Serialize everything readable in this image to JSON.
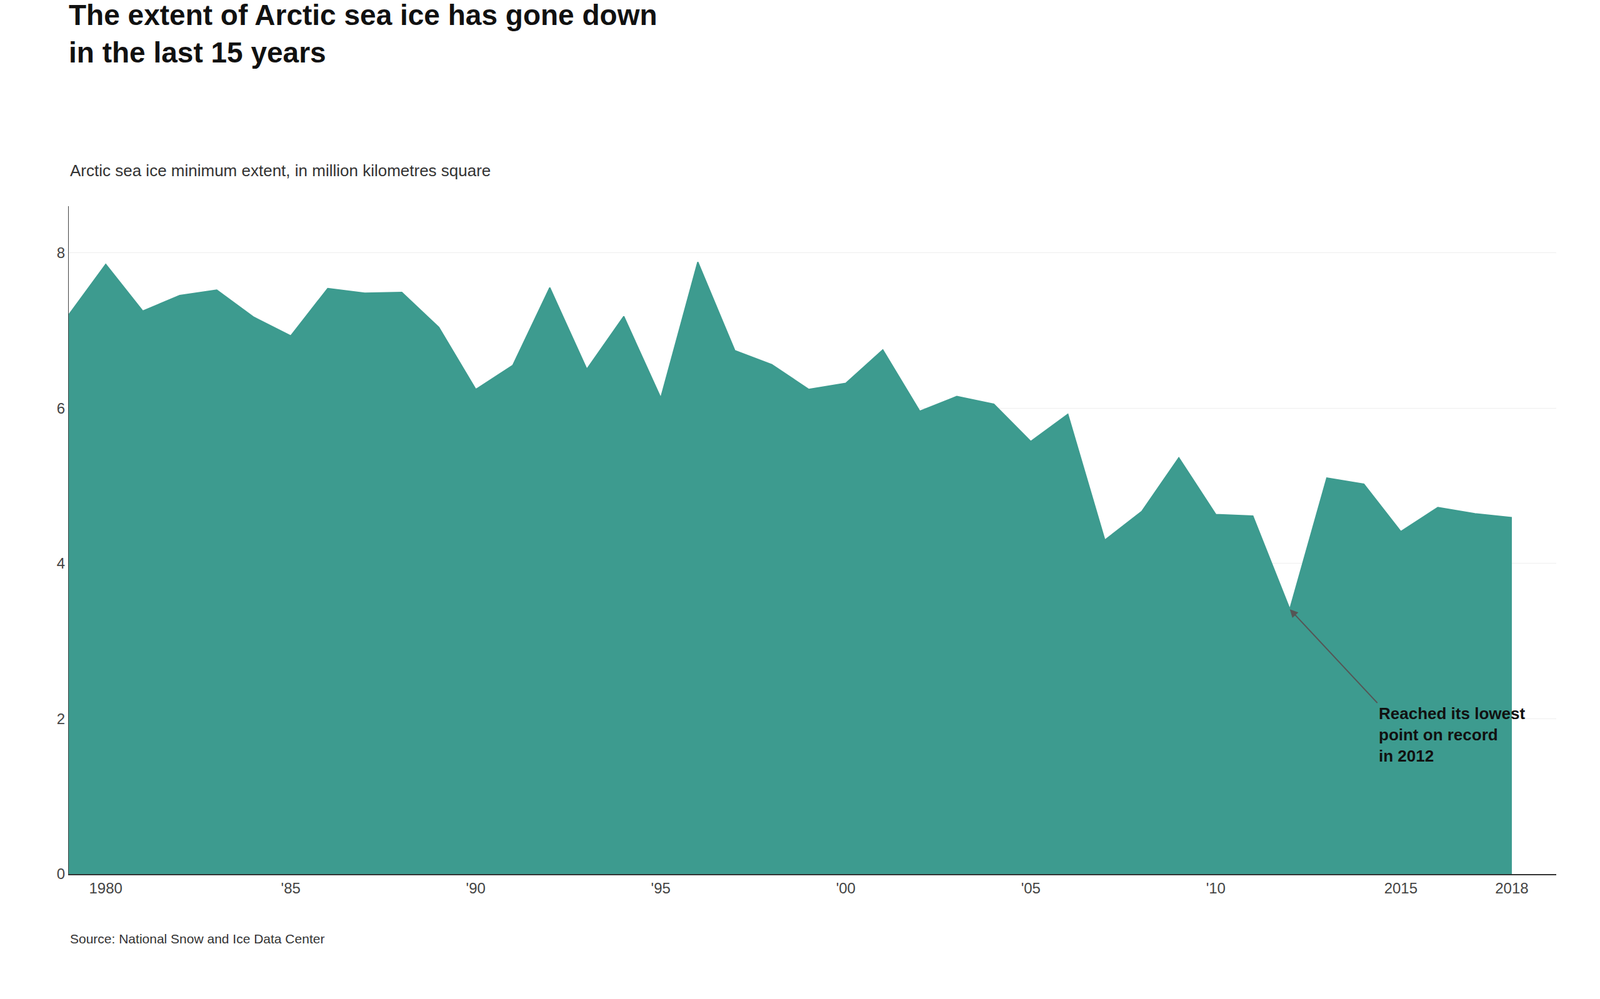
{
  "chart_data": {
    "type": "area",
    "title": "The extent of Arctic sea ice has gone down\nin the last 15 years",
    "subtitle": "Arctic sea ice minimum extent, in million kilometres square",
    "source": "Source: National Snow and Ice Data Center",
    "x": [
      1979,
      1980,
      1981,
      1982,
      1983,
      1984,
      1985,
      1986,
      1987,
      1988,
      1989,
      1990,
      1991,
      1992,
      1993,
      1994,
      1995,
      1996,
      1997,
      1998,
      1999,
      2000,
      2001,
      2002,
      2003,
      2004,
      2005,
      2006,
      2007,
      2008,
      2009,
      2010,
      2011,
      2012,
      2013,
      2014,
      2015,
      2016,
      2017,
      2018
    ],
    "values": [
      7.2,
      7.85,
      7.25,
      7.45,
      7.52,
      7.17,
      6.93,
      7.54,
      7.48,
      7.49,
      7.04,
      6.24,
      6.55,
      7.55,
      6.5,
      7.18,
      6.13,
      7.88,
      6.74,
      6.56,
      6.24,
      6.32,
      6.75,
      5.96,
      6.15,
      6.05,
      5.57,
      5.92,
      4.3,
      4.67,
      5.36,
      4.63,
      4.61,
      3.41,
      5.1,
      5.02,
      4.41,
      4.72,
      4.64,
      4.59
    ],
    "color": "#3d9b8f",
    "xlim": [
      1979,
      2019.2
    ],
    "xticks": [
      1980,
      {
        "value": 1985,
        "label": "'85"
      },
      {
        "value": 1990,
        "label": "'90"
      },
      {
        "value": 1995,
        "label": "'95"
      },
      {
        "value": 2000,
        "label": "'00"
      },
      {
        "value": 2005,
        "label": "'05"
      },
      {
        "value": 2010,
        "label": "'10"
      },
      2015,
      2018
    ],
    "ylim": [
      0,
      8.6
    ],
    "yticks": [
      0,
      2,
      4,
      6,
      8
    ],
    "grid": "y",
    "annotations": [
      {
        "text": "Reached its lowest\npoint on record\nin 2012",
        "x": 2012,
        "y": 3.41
      }
    ]
  }
}
